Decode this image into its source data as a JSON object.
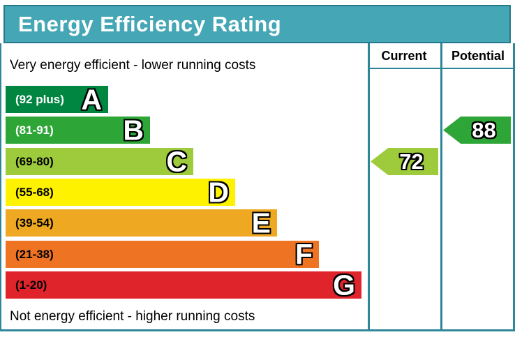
{
  "title": "Energy Efficiency Rating",
  "top_note": "Very energy efficient - lower running costs",
  "bottom_note": "Not energy efficient - higher running costs",
  "columns": {
    "current": "Current",
    "potential": "Potential"
  },
  "bands": [
    {
      "grade": "A",
      "range": "(92 plus)",
      "color": "#008641",
      "label_color": "#ffffff"
    },
    {
      "grade": "B",
      "range": "(81-91)",
      "color": "#2EA637",
      "label_color": "#ffffff"
    },
    {
      "grade": "C",
      "range": "(69-80)",
      "color": "#9DCB3C",
      "label_color": "#000000"
    },
    {
      "grade": "D",
      "range": "(55-68)",
      "color": "#FFF200",
      "label_color": "#000000"
    },
    {
      "grade": "E",
      "range": "(39-54)",
      "color": "#EFA822",
      "label_color": "#000000"
    },
    {
      "grade": "F",
      "range": "(21-38)",
      "color": "#EE7323",
      "label_color": "#000000"
    },
    {
      "grade": "G",
      "range": "(1-20)",
      "color": "#E0242B",
      "label_color": "#000000"
    }
  ],
  "ratings": {
    "current": {
      "value": "72",
      "band": "C",
      "color": "#9DCB3C"
    },
    "potential": {
      "value": "88",
      "band": "B",
      "color": "#2EA637"
    }
  },
  "colors": {
    "header_bg": "#45A6B6",
    "header_border": "#26798B",
    "frame": "#2E8799",
    "letter_fill": "#ffffff",
    "letter_outline": "#000000"
  },
  "chart_data": {
    "type": "bar",
    "title": "Energy Efficiency Rating",
    "orientation": "horizontal",
    "categories": [
      "A",
      "B",
      "C",
      "D",
      "E",
      "F",
      "G"
    ],
    "band_score_ranges": [
      "92 plus",
      "81-91",
      "69-80",
      "55-68",
      "39-54",
      "21-38",
      "1-20"
    ],
    "bar_relative_lengths": [
      1,
      2,
      3,
      4,
      5,
      6,
      7
    ],
    "series": [
      {
        "name": "Current",
        "value": 72,
        "band": "C"
      },
      {
        "name": "Potential",
        "value": 88,
        "band": "B"
      }
    ],
    "annotations": [
      "Very energy efficient - lower running costs",
      "Not energy efficient - higher running costs"
    ],
    "legend_position": "none",
    "grid": false
  }
}
